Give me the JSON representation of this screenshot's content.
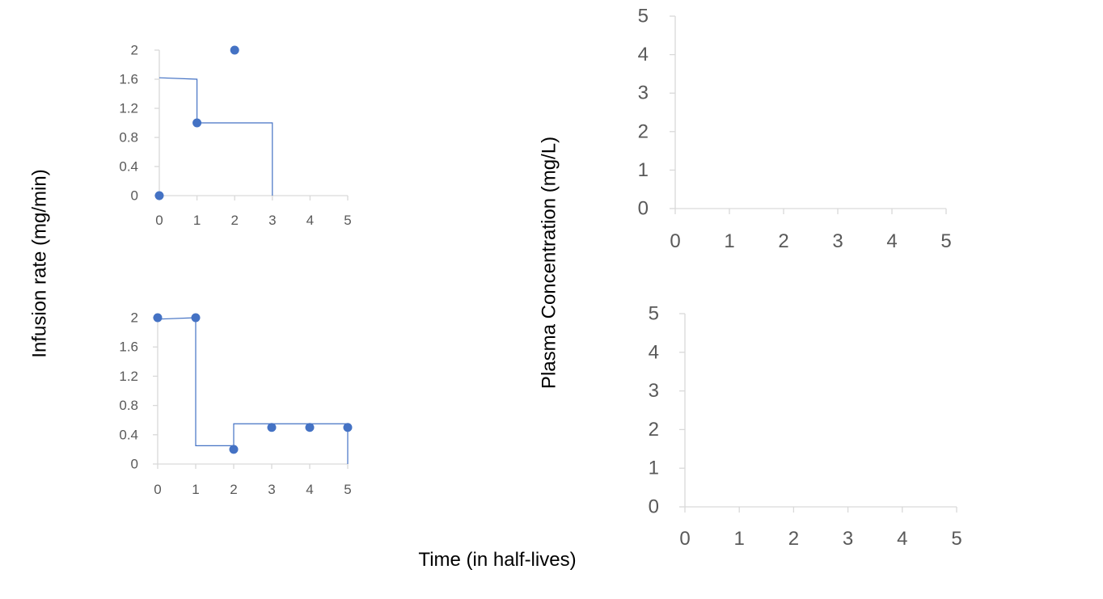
{
  "labels": {
    "left_ylabel": "Infusion rate (mg/min)",
    "right_ylabel": "Plasma Concentration (mg/L)",
    "xlabel": "Time (in half-lives)"
  },
  "colors": {
    "series": "#4472c4",
    "axis": "#d9d9d9",
    "tick": "#595959"
  },
  "chart_data": [
    {
      "type": "scatter",
      "title": "",
      "xlabel": "Time (in half-lives)",
      "ylabel": "Infusion rate (mg/min)",
      "xlim": [
        0,
        5
      ],
      "ylim": [
        0,
        2
      ],
      "x_ticks": [
        "0",
        "1",
        "2",
        "3",
        "4",
        "5"
      ],
      "y_ticks": [
        "0",
        "0.4",
        "0.8",
        "1.2",
        "1.6",
        "2"
      ],
      "points": [
        {
          "x": 0,
          "y": 0
        },
        {
          "x": 1,
          "y": 1
        },
        {
          "x": 2,
          "y": 2
        }
      ],
      "step_line": [
        {
          "x": 0,
          "y": 1.62
        },
        {
          "x": 1,
          "y": 1.6
        },
        {
          "x": 1,
          "y": 1.0
        },
        {
          "x": 3,
          "y": 1.0
        },
        {
          "x": 3,
          "y": 0
        }
      ]
    },
    {
      "type": "scatter",
      "title": "",
      "xlabel": "Time (in half-lives)",
      "ylabel": "Infusion rate (mg/min)",
      "xlim": [
        0,
        5
      ],
      "ylim": [
        0,
        2
      ],
      "x_ticks": [
        "0",
        "1",
        "2",
        "3",
        "4",
        "5"
      ],
      "y_ticks": [
        "0",
        "0.4",
        "0.8",
        "1.2",
        "1.6",
        "2"
      ],
      "points": [
        {
          "x": 0,
          "y": 2
        },
        {
          "x": 1,
          "y": 2
        },
        {
          "x": 2,
          "y": 0.2
        },
        {
          "x": 3,
          "y": 0.5
        },
        {
          "x": 4,
          "y": 0.5
        },
        {
          "x": 5,
          "y": 0.5
        }
      ],
      "step_line": [
        {
          "x": 0,
          "y": 1.98
        },
        {
          "x": 1,
          "y": 2
        },
        {
          "x": 1,
          "y": 0.25
        },
        {
          "x": 2,
          "y": 0.25
        },
        {
          "x": 2,
          "y": 0.55
        },
        {
          "x": 5,
          "y": 0.55
        },
        {
          "x": 5,
          "y": 0
        }
      ]
    },
    {
      "type": "line",
      "title": "",
      "xlabel": "Time (in half-lives)",
      "ylabel": "Plasma Concentration (mg/L)",
      "xlim": [
        0,
        5
      ],
      "ylim": [
        0,
        5
      ],
      "x_ticks": [
        "0",
        "1",
        "2",
        "3",
        "4",
        "5"
      ],
      "y_ticks": [
        "0",
        "1",
        "2",
        "3",
        "4",
        "5"
      ],
      "points": [],
      "step_line": []
    },
    {
      "type": "line",
      "title": "",
      "xlabel": "Time (in half-lives)",
      "ylabel": "Plasma Concentration (mg/L)",
      "xlim": [
        0,
        5
      ],
      "ylim": [
        0,
        5
      ],
      "x_ticks": [
        "0",
        "1",
        "2",
        "3",
        "4",
        "5"
      ],
      "y_ticks": [
        "0",
        "1",
        "2",
        "3",
        "4",
        "5"
      ],
      "points": [],
      "step_line": []
    }
  ]
}
